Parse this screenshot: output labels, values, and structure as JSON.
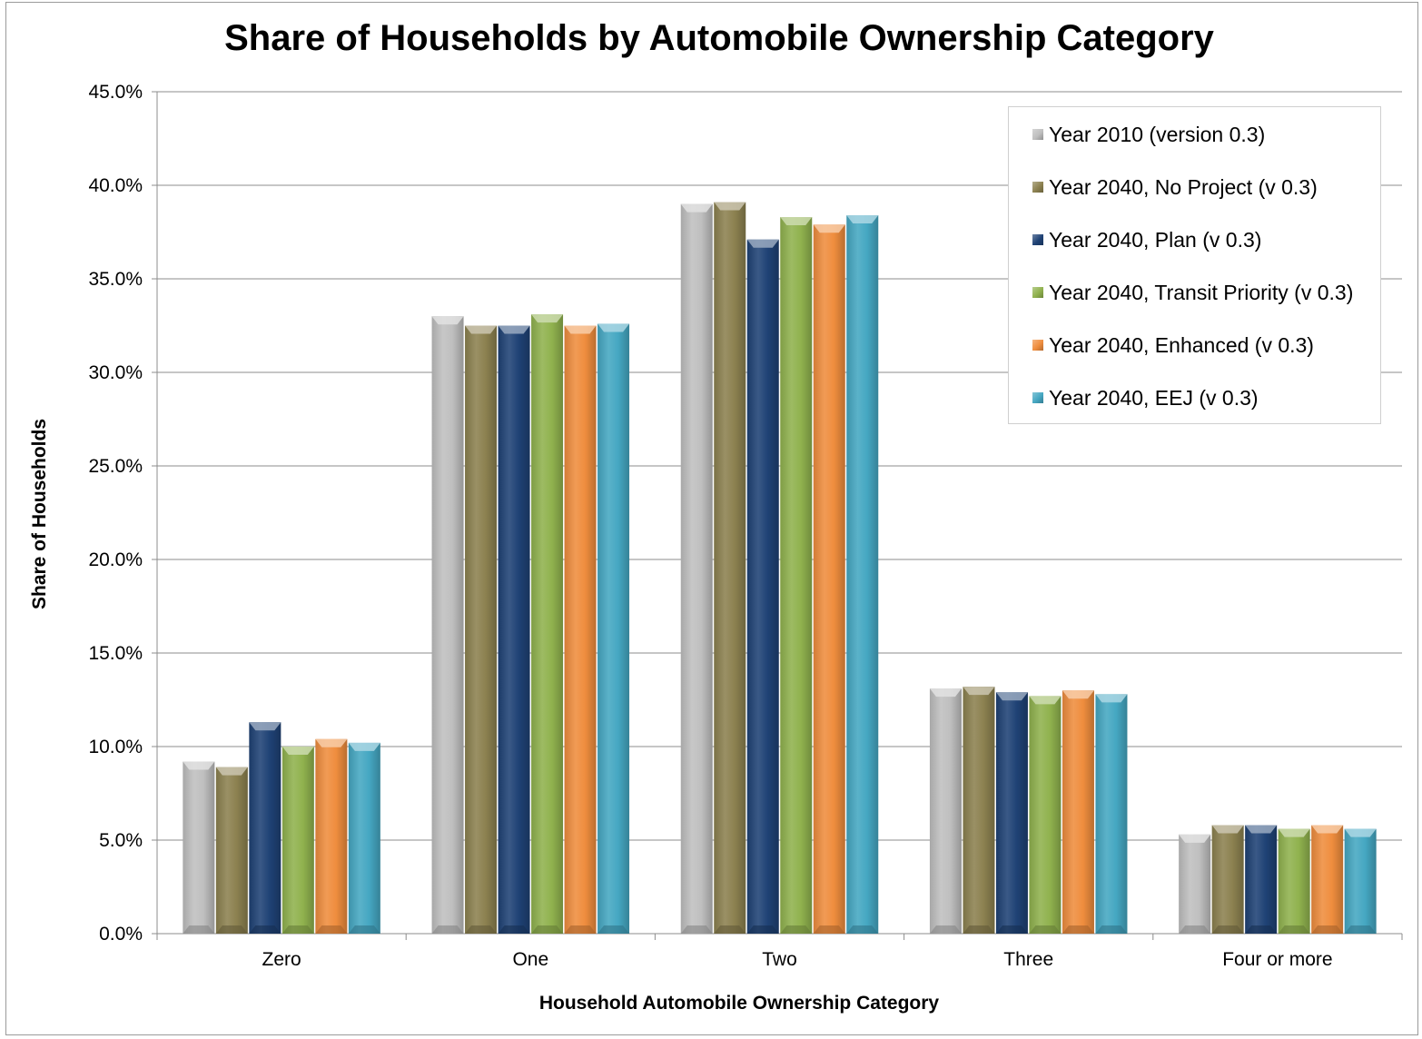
{
  "chart_data": {
    "type": "bar",
    "title": "Share of Households by Automobile Ownership Category",
    "xlabel": "Household Automobile Ownership Category",
    "ylabel": "Share of Households",
    "ylim": [
      0,
      0.45
    ],
    "yticks": [
      {
        "value": 0.0,
        "label": "0.0%"
      },
      {
        "value": 0.05,
        "label": "5.0%"
      },
      {
        "value": 0.1,
        "label": "10.0%"
      },
      {
        "value": 0.15,
        "label": "15.0%"
      },
      {
        "value": 0.2,
        "label": "20.0%"
      },
      {
        "value": 0.25,
        "label": "25.0%"
      },
      {
        "value": 0.3,
        "label": "30.0%"
      },
      {
        "value": 0.35,
        "label": "35.0%"
      },
      {
        "value": 0.4,
        "label": "40.0%"
      },
      {
        "value": 0.45,
        "label": "45.0%"
      }
    ],
    "grid": true,
    "legend_position": "top-right",
    "categories": [
      "Zero",
      "One",
      "Two",
      "Three",
      "Four or more"
    ],
    "series": [
      {
        "name": "Year 2010 (version 0.3)",
        "color": "#bfbfbf",
        "values": [
          0.092,
          0.33,
          0.39,
          0.131,
          0.053
        ]
      },
      {
        "name": "Year 2040, No Project (v 0.3)",
        "color": "#8c8150",
        "values": [
          0.089,
          0.325,
          0.391,
          0.132,
          0.058
        ]
      },
      {
        "name": "Year 2040, Plan (v 0.3)",
        "color": "#1f4275",
        "values": [
          0.113,
          0.325,
          0.371,
          0.129,
          0.058
        ]
      },
      {
        "name": "Year 2040, Transit Priority (v 0.3)",
        "color": "#90b24e",
        "values": [
          0.1,
          0.331,
          0.383,
          0.127,
          0.056
        ]
      },
      {
        "name": "Year 2040, Enhanced (v 0.3)",
        "color": "#ef8d3e",
        "values": [
          0.104,
          0.325,
          0.379,
          0.13,
          0.058
        ]
      },
      {
        "name": "Year 2040, EEJ (v 0.3)",
        "color": "#45a7c2",
        "values": [
          0.102,
          0.326,
          0.384,
          0.128,
          0.056
        ]
      }
    ]
  }
}
